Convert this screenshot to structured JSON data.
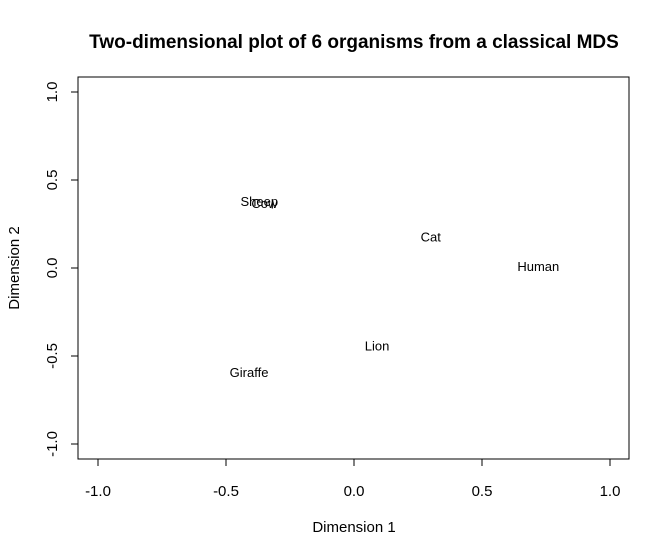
{
  "chart_data": {
    "type": "scatter",
    "title": "Two-dimensional plot of 6 organisms from a classical MDS",
    "xlabel": "Dimension 1",
    "ylabel": "Dimension 2",
    "xlim": [
      -1.0,
      1.0
    ],
    "ylim": [
      -1.0,
      1.0
    ],
    "x_ticks": [
      "-1.0",
      "-0.5",
      "0.0",
      "0.5",
      "1.0"
    ],
    "y_ticks": [
      "-1.0",
      "-0.5",
      "0.0",
      "0.5",
      "1.0"
    ],
    "grid": false,
    "legend": "none",
    "points": [
      {
        "label": "Sheep",
        "x": -0.37,
        "y": 0.38
      },
      {
        "label": "Cow",
        "x": -0.35,
        "y": 0.37
      },
      {
        "label": "Cat",
        "x": 0.3,
        "y": 0.18
      },
      {
        "label": "Human",
        "x": 0.72,
        "y": 0.01
      },
      {
        "label": "Lion",
        "x": 0.09,
        "y": -0.44
      },
      {
        "label": "Giraffe",
        "x": -0.41,
        "y": -0.59
      }
    ]
  }
}
